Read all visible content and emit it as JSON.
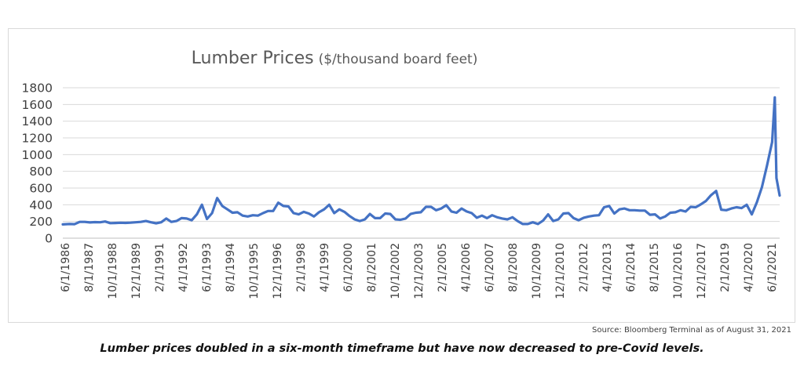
{
  "chart_data": {
    "type": "line",
    "title": "Lumber Prices",
    "title_unit": "($/thousand board feet)",
    "ylim": [
      0,
      1800
    ],
    "y_ticks": [
      "0",
      "200",
      "400",
      "600",
      "800",
      "1000",
      "1200",
      "1400",
      "1600",
      "1800"
    ],
    "x_tick_labels": [
      "6/1/1986",
      "8/1/1987",
      "10/1/1988",
      "12/1/1989",
      "2/1/1991",
      "4/1/1992",
      "6/1/1993",
      "8/1/1994",
      "10/1/1995",
      "12/1/1996",
      "2/1/1998",
      "4/1/1999",
      "6/1/2000",
      "8/1/2001",
      "10/1/2002",
      "12/1/2003",
      "2/1/2005",
      "4/1/2006",
      "6/1/2007",
      "8/1/2008",
      "10/1/2009",
      "12/1/2010",
      "2/1/2012",
      "4/1/2013",
      "6/1/2014",
      "8/1/2015",
      "10/1/2016",
      "12/1/2017",
      "2/1/2019",
      "4/1/2020",
      "6/1/2021"
    ],
    "grid": true,
    "legend": "none",
    "line_color": "#4472c4",
    "series": [
      {
        "values": [
          [
            1986.42,
            165
          ],
          [
            1986.75,
            170
          ],
          [
            1987.0,
            168
          ],
          [
            1987.25,
            195
          ],
          [
            1987.5,
            195
          ],
          [
            1987.75,
            188
          ],
          [
            1988.0,
            192
          ],
          [
            1988.25,
            190
          ],
          [
            1988.5,
            200
          ],
          [
            1988.75,
            180
          ],
          [
            1989.0,
            182
          ],
          [
            1989.25,
            185
          ],
          [
            1989.5,
            183
          ],
          [
            1989.75,
            186
          ],
          [
            1990.0,
            190
          ],
          [
            1990.25,
            195
          ],
          [
            1990.5,
            205
          ],
          [
            1990.75,
            190
          ],
          [
            1991.0,
            178
          ],
          [
            1991.25,
            190
          ],
          [
            1991.5,
            235
          ],
          [
            1991.75,
            195
          ],
          [
            1992.0,
            205
          ],
          [
            1992.25,
            240
          ],
          [
            1992.5,
            235
          ],
          [
            1992.75,
            215
          ],
          [
            1993.0,
            285
          ],
          [
            1993.25,
            400
          ],
          [
            1993.5,
            230
          ],
          [
            1993.75,
            300
          ],
          [
            1994.0,
            480
          ],
          [
            1994.25,
            385
          ],
          [
            1994.5,
            345
          ],
          [
            1994.75,
            305
          ],
          [
            1995.0,
            310
          ],
          [
            1995.25,
            270
          ],
          [
            1995.5,
            260
          ],
          [
            1995.75,
            275
          ],
          [
            1996.0,
            270
          ],
          [
            1996.25,
            300
          ],
          [
            1996.5,
            325
          ],
          [
            1996.75,
            325
          ],
          [
            1997.0,
            425
          ],
          [
            1997.25,
            385
          ],
          [
            1997.5,
            380
          ],
          [
            1997.75,
            300
          ],
          [
            1998.0,
            285
          ],
          [
            1998.25,
            315
          ],
          [
            1998.5,
            295
          ],
          [
            1998.75,
            260
          ],
          [
            1999.0,
            310
          ],
          [
            1999.25,
            345
          ],
          [
            1999.5,
            400
          ],
          [
            1999.75,
            300
          ],
          [
            2000.0,
            345
          ],
          [
            2000.25,
            315
          ],
          [
            2000.5,
            265
          ],
          [
            2000.75,
            225
          ],
          [
            2001.0,
            205
          ],
          [
            2001.25,
            225
          ],
          [
            2001.5,
            290
          ],
          [
            2001.75,
            240
          ],
          [
            2002.0,
            240
          ],
          [
            2002.25,
            295
          ],
          [
            2002.5,
            290
          ],
          [
            2002.75,
            225
          ],
          [
            2003.0,
            220
          ],
          [
            2003.25,
            235
          ],
          [
            2003.5,
            290
          ],
          [
            2003.75,
            305
          ],
          [
            2004.0,
            310
          ],
          [
            2004.25,
            375
          ],
          [
            2004.5,
            375
          ],
          [
            2004.75,
            335
          ],
          [
            2005.0,
            355
          ],
          [
            2005.25,
            395
          ],
          [
            2005.5,
            320
          ],
          [
            2005.75,
            305
          ],
          [
            2006.0,
            355
          ],
          [
            2006.25,
            320
          ],
          [
            2006.5,
            300
          ],
          [
            2006.75,
            245
          ],
          [
            2007.0,
            270
          ],
          [
            2007.25,
            240
          ],
          [
            2007.5,
            275
          ],
          [
            2007.75,
            250
          ],
          [
            2008.0,
            235
          ],
          [
            2008.25,
            225
          ],
          [
            2008.5,
            250
          ],
          [
            2008.75,
            205
          ],
          [
            2009.0,
            170
          ],
          [
            2009.25,
            170
          ],
          [
            2009.5,
            190
          ],
          [
            2009.75,
            170
          ],
          [
            2010.0,
            210
          ],
          [
            2010.25,
            285
          ],
          [
            2010.5,
            205
          ],
          [
            2010.75,
            225
          ],
          [
            2011.0,
            295
          ],
          [
            2011.25,
            300
          ],
          [
            2011.5,
            240
          ],
          [
            2011.75,
            215
          ],
          [
            2012.0,
            245
          ],
          [
            2012.25,
            260
          ],
          [
            2012.5,
            270
          ],
          [
            2012.75,
            275
          ],
          [
            2013.0,
            370
          ],
          [
            2013.25,
            385
          ],
          [
            2013.5,
            295
          ],
          [
            2013.75,
            345
          ],
          [
            2014.0,
            355
          ],
          [
            2014.25,
            335
          ],
          [
            2014.5,
            335
          ],
          [
            2014.75,
            330
          ],
          [
            2015.0,
            330
          ],
          [
            2015.25,
            280
          ],
          [
            2015.5,
            285
          ],
          [
            2015.75,
            235
          ],
          [
            2016.0,
            260
          ],
          [
            2016.25,
            305
          ],
          [
            2016.5,
            310
          ],
          [
            2016.75,
            335
          ],
          [
            2017.0,
            320
          ],
          [
            2017.25,
            375
          ],
          [
            2017.5,
            370
          ],
          [
            2017.75,
            405
          ],
          [
            2018.0,
            445
          ],
          [
            2018.25,
            515
          ],
          [
            2018.5,
            565
          ],
          [
            2018.75,
            340
          ],
          [
            2019.0,
            335
          ],
          [
            2019.25,
            355
          ],
          [
            2019.5,
            370
          ],
          [
            2019.75,
            360
          ],
          [
            2020.0,
            400
          ],
          [
            2020.25,
            285
          ],
          [
            2020.5,
            430
          ],
          [
            2020.75,
            610
          ],
          [
            2021.0,
            870
          ],
          [
            2021.25,
            1150
          ],
          [
            2021.38,
            1685
          ],
          [
            2021.46,
            720
          ],
          [
            2021.62,
            510
          ]
        ]
      }
    ]
  },
  "source_note": "Source: Bloomberg Terminal as of August 31, 2021",
  "caption": "Lumber prices doubled in a six-month timeframe but have now decreased to pre-Covid levels."
}
